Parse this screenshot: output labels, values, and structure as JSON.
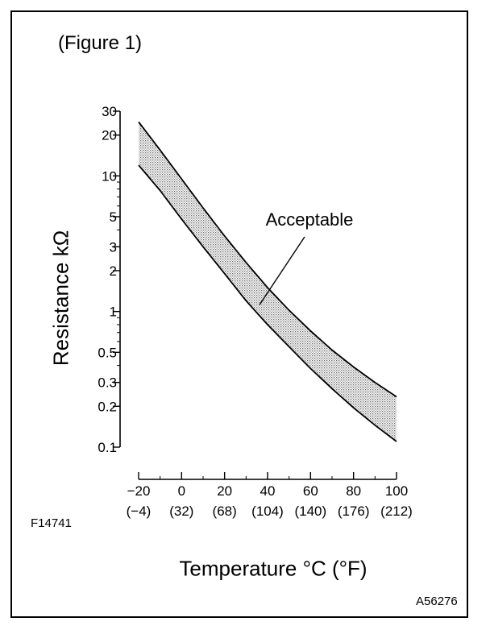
{
  "figure_label": "(Figure 1)",
  "ref_left": "F14741",
  "ref_right": "A56276",
  "chart_data": {
    "type": "area",
    "ylabel": "Resistance kΩ",
    "xlabel": "Temperature °C (°F)",
    "y_scale": "log",
    "ylim": [
      0.1,
      30
    ],
    "xlim": [
      -20,
      100
    ],
    "y_ticks": [
      {
        "value": 30,
        "label": "30"
      },
      {
        "value": 20,
        "label": "20"
      },
      {
        "value": 10,
        "label": "10"
      },
      {
        "value": 5,
        "label": "5"
      },
      {
        "value": 3,
        "label": "3"
      },
      {
        "value": 2,
        "label": "2"
      },
      {
        "value": 1,
        "label": "1"
      },
      {
        "value": 0.5,
        "label": "0.5"
      },
      {
        "value": 0.3,
        "label": "0.3"
      },
      {
        "value": 0.2,
        "label": "0.2"
      },
      {
        "value": 0.1,
        "label": "0.1"
      }
    ],
    "x_ticks": [
      {
        "value": -20,
        "label": "−20",
        "sub": "(−4)"
      },
      {
        "value": 0,
        "label": "0",
        "sub": "(32)"
      },
      {
        "value": 20,
        "label": "20",
        "sub": "(68)"
      },
      {
        "value": 40,
        "label": "40",
        "sub": "(104)"
      },
      {
        "value": 60,
        "label": "60",
        "sub": "(140)"
      },
      {
        "value": 80,
        "label": "80",
        "sub": "(176)"
      },
      {
        "value": 100,
        "label": "100",
        "sub": "(212)"
      }
    ],
    "series": [
      {
        "x": [
          -20,
          -10,
          0,
          10,
          20,
          30,
          40,
          50,
          60,
          70,
          80,
          90,
          100
        ],
        "upper": [
          25,
          15.5,
          9.5,
          5.8,
          3.6,
          2.3,
          1.5,
          1.02,
          0.72,
          0.52,
          0.39,
          0.3,
          0.235
        ],
        "lower": [
          12,
          7.8,
          4.8,
          3.0,
          1.9,
          1.2,
          0.8,
          0.55,
          0.38,
          0.27,
          0.195,
          0.145,
          0.11
        ]
      }
    ],
    "annotations": [
      {
        "text": "Acceptable",
        "x": 40,
        "y": 1.2
      }
    ]
  }
}
